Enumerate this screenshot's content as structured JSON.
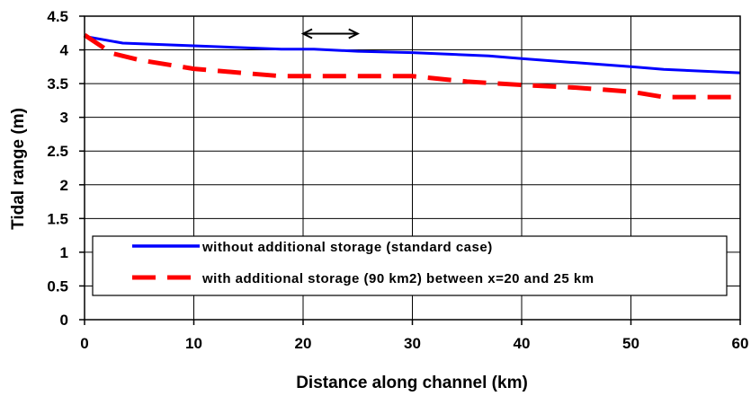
{
  "chart_data": {
    "type": "line",
    "xlabel": "Distance along channel (km)",
    "ylabel": "Tidal range (m)",
    "xlim": [
      0,
      60
    ],
    "ylim": [
      0,
      4.5
    ],
    "x_ticks": [
      "0",
      "10",
      "20",
      "30",
      "40",
      "50",
      "60"
    ],
    "y_ticks": [
      "0",
      "0.5",
      "1",
      "1.5",
      "2",
      "2.5",
      "3",
      "3.5",
      "4",
      "4.5"
    ],
    "grid": true,
    "legend_position": "lower-center",
    "series": [
      {
        "name": "without additional storage (standard case)",
        "color": "#0000ff",
        "style": "solid",
        "x": [
          0,
          3.5,
          10,
          18,
          21,
          25,
          30,
          37,
          40,
          45,
          50,
          53,
          60
        ],
        "y": [
          4.2,
          4.1,
          4.06,
          4.01,
          4.01,
          3.98,
          3.96,
          3.91,
          3.87,
          3.81,
          3.75,
          3.71,
          3.66
        ]
      },
      {
        "name": "with additional storage (90 km2) between x=20 and 25 km",
        "color": "#ff0000",
        "style": "dashed",
        "x": [
          0,
          2.5,
          5,
          10,
          15,
          18,
          25,
          30,
          35,
          40,
          45,
          50,
          53,
          60
        ],
        "y": [
          4.22,
          3.95,
          3.85,
          3.72,
          3.65,
          3.61,
          3.61,
          3.61,
          3.53,
          3.48,
          3.44,
          3.38,
          3.3,
          3.3
        ]
      }
    ],
    "annotation": {
      "type": "double-arrow",
      "x_from": 20,
      "x_to": 25,
      "y": 4.24,
      "color": "#000000"
    }
  }
}
